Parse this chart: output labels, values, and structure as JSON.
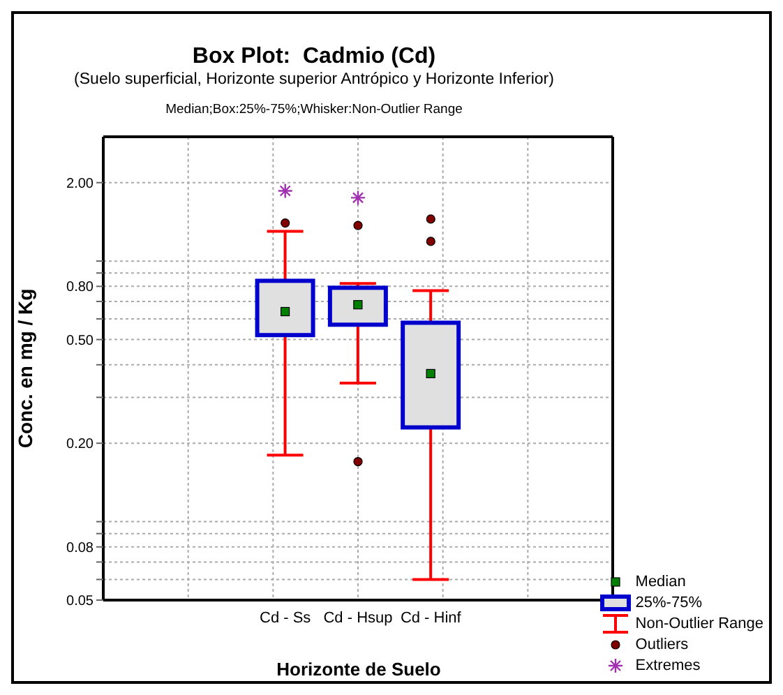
{
  "chart_data": {
    "type": "box",
    "title": "Box Plot:  Cadmio (Cd)",
    "subtitle": "(Suelo superficial, Horizonte superior Antrópico y Horizonte Inferior)",
    "xlabel": "Horizonte de Suelo",
    "ylabel": "Conc. en mg / Kg",
    "annotations": [
      "Median;Box:25%-75%;Whisker:Non-Outlier Range",
      "Median",
      "Non-Outlier Range"
    ],
    "categories": [
      null,
      null,
      "Cd - Ss",
      "Cd - Hsup",
      "Cd - Hinf",
      null,
      null
    ],
    "log": "y",
    "ylim": [
      0.05,
      3
    ],
    "yticks": [
      {
        "value": 0.05,
        "label": "0.05"
      },
      {
        "value": 0.06,
        "label": null
      },
      {
        "value": 0.07,
        "label": null
      },
      {
        "value": 0.08,
        "label": "0.08"
      },
      {
        "value": 0.09,
        "label": null
      },
      {
        "value": 0.1,
        "label": null
      },
      {
        "value": 0.2,
        "label": "0.20"
      },
      {
        "value": 0.3,
        "label": null
      },
      {
        "value": 0.4,
        "label": null
      },
      {
        "value": 0.5,
        "label": "0.50"
      },
      {
        "value": 0.6,
        "label": null
      },
      {
        "value": 0.7,
        "label": null
      },
      {
        "value": 0.8,
        "label": "0.80"
      },
      {
        "value": 0.9,
        "label": null
      },
      {
        "value": 1.0,
        "label": null
      },
      {
        "value": 2.0,
        "label": "2.00"
      }
    ],
    "grid": true,
    "legend": "bottom right",
    "series": [
      {
        "type": "box",
        "name": "25%-75%",
        "color": "#0000cc",
        "boxes": [
          null,
          null,
          {
            "low": 0.18,
            "q1": 0.52,
            "median": 0.64,
            "q3": 0.84,
            "high": 1.3
          },
          {
            "low": 0.34,
            "q1": 0.57,
            "median": 0.68,
            "q3": 0.79,
            "high": 0.82
          },
          {
            "low": 0.06,
            "q1": 0.23,
            "median": 0.37,
            "q3": 0.58,
            "high": 0.77
          },
          null,
          null
        ]
      },
      {
        "type": "scatter",
        "name": "Outliers",
        "color": "#800000",
        "marker": "circle",
        "x": [
          "Cd - Ss",
          "Cd - Hsup",
          "Cd - Hsup",
          "Cd - Hinf",
          "Cd - Hinf"
        ],
        "values": [
          1.4,
          1.37,
          0.17,
          1.45,
          1.19
        ]
      },
      {
        "type": "scatter",
        "name": "Extremes",
        "color": "#a030b0",
        "marker": "cross",
        "x": [
          "Cd - Ss",
          "Cd - Hsup"
        ],
        "values": [
          1.86,
          1.75
        ]
      }
    ]
  }
}
